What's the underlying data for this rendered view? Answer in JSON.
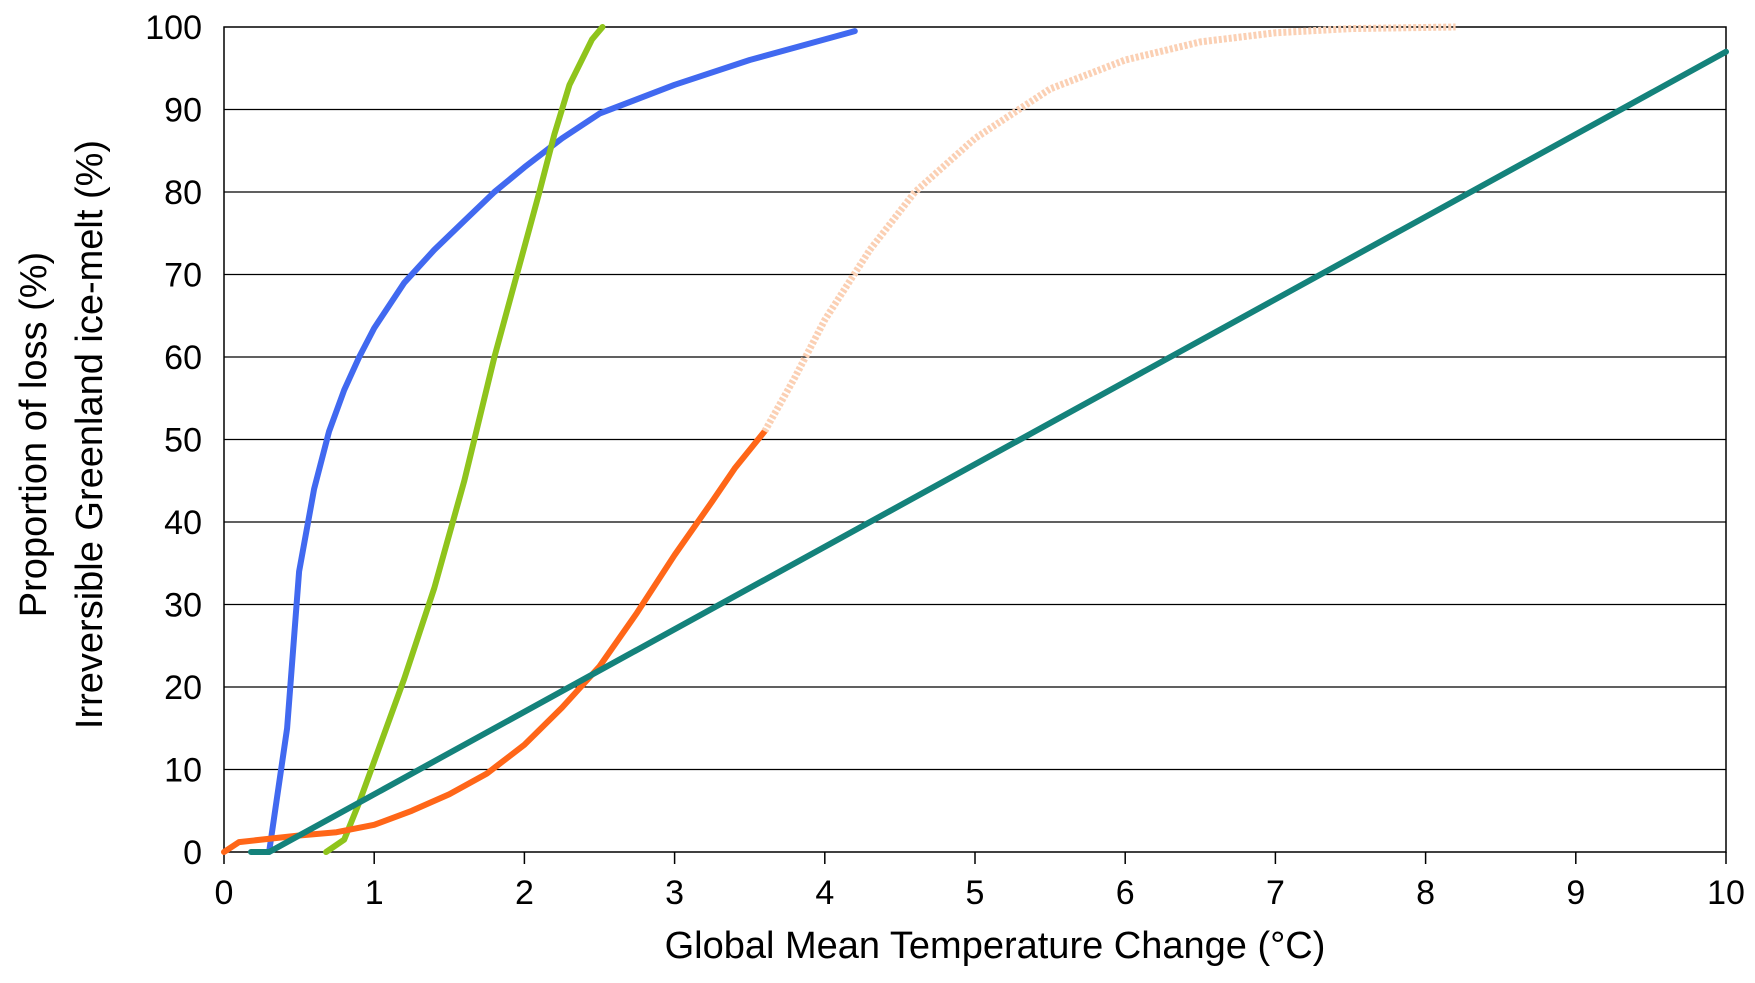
{
  "chart_data": {
    "type": "line",
    "xlabel": "Global Mean Temperature Change (°C)",
    "ylabel": [
      "Proportion of loss (%)",
      "Irreversible Greenland ice-melt (%)"
    ],
    "xlim": [
      0,
      10
    ],
    "ylim": [
      0,
      100
    ],
    "x_ticks": [
      "0",
      "1",
      "2",
      "3",
      "4",
      "5",
      "6",
      "7",
      "8",
      "9",
      "10"
    ],
    "y_ticks": [
      "0",
      "10",
      "20",
      "30",
      "40",
      "50",
      "60",
      "70",
      "80",
      "90",
      "100"
    ],
    "grid": "horizontal",
    "legend": "none",
    "series": [
      {
        "color": "#4169f0",
        "style": "solid",
        "points": [
          [
            0.3,
            0
          ],
          [
            0.34,
            5
          ],
          [
            0.42,
            15
          ],
          [
            0.5,
            34
          ],
          [
            0.6,
            44
          ],
          [
            0.7,
            51
          ],
          [
            0.8,
            56
          ],
          [
            0.9,
            60
          ],
          [
            1.0,
            63.5
          ],
          [
            1.2,
            69
          ],
          [
            1.4,
            73
          ],
          [
            1.6,
            76.5
          ],
          [
            1.8,
            80
          ],
          [
            2.0,
            83
          ],
          [
            2.25,
            86.5
          ],
          [
            2.5,
            89.5
          ],
          [
            3.0,
            93
          ],
          [
            3.5,
            96
          ],
          [
            4.0,
            98.5
          ],
          [
            4.2,
            99.5
          ]
        ]
      },
      {
        "color": "#8fc41c",
        "style": "solid",
        "points": [
          [
            0.68,
            0
          ],
          [
            0.8,
            1.5
          ],
          [
            0.9,
            6
          ],
          [
            1.0,
            11
          ],
          [
            1.2,
            21
          ],
          [
            1.4,
            32
          ],
          [
            1.6,
            45
          ],
          [
            1.8,
            60
          ],
          [
            1.95,
            70
          ],
          [
            2.1,
            80
          ],
          [
            2.2,
            87
          ],
          [
            2.3,
            93
          ],
          [
            2.45,
            98.5
          ],
          [
            2.52,
            100
          ]
        ]
      },
      {
        "color": "#ff6618",
        "style": "solid",
        "points": [
          [
            0,
            0
          ],
          [
            0.1,
            1.2
          ],
          [
            0.5,
            2
          ],
          [
            0.75,
            2.4
          ],
          [
            1.0,
            3.3
          ],
          [
            1.25,
            5
          ],
          [
            1.5,
            7
          ],
          [
            1.75,
            9.5
          ],
          [
            2.0,
            13
          ],
          [
            2.25,
            17.5
          ],
          [
            2.5,
            22.5
          ],
          [
            2.75,
            29
          ],
          [
            3.0,
            36
          ],
          [
            3.25,
            42.5
          ],
          [
            3.4,
            46.5
          ],
          [
            3.6,
            51
          ]
        ]
      },
      {
        "color": "#fbd0b4",
        "style": "dotted",
        "points": [
          [
            3.6,
            51
          ],
          [
            3.8,
            57.5
          ],
          [
            4.0,
            64.5
          ],
          [
            4.3,
            73
          ],
          [
            4.6,
            80
          ],
          [
            5.0,
            86.5
          ],
          [
            5.5,
            92.5
          ],
          [
            6.0,
            96
          ],
          [
            6.5,
            98.2
          ],
          [
            7.0,
            99.3
          ],
          [
            7.5,
            99.8
          ],
          [
            8.2,
            100
          ]
        ]
      },
      {
        "color": "#14827b",
        "style": "solid",
        "points": [
          [
            0.18,
            0
          ],
          [
            0.3,
            0
          ],
          [
            10,
            97
          ]
        ]
      }
    ]
  }
}
